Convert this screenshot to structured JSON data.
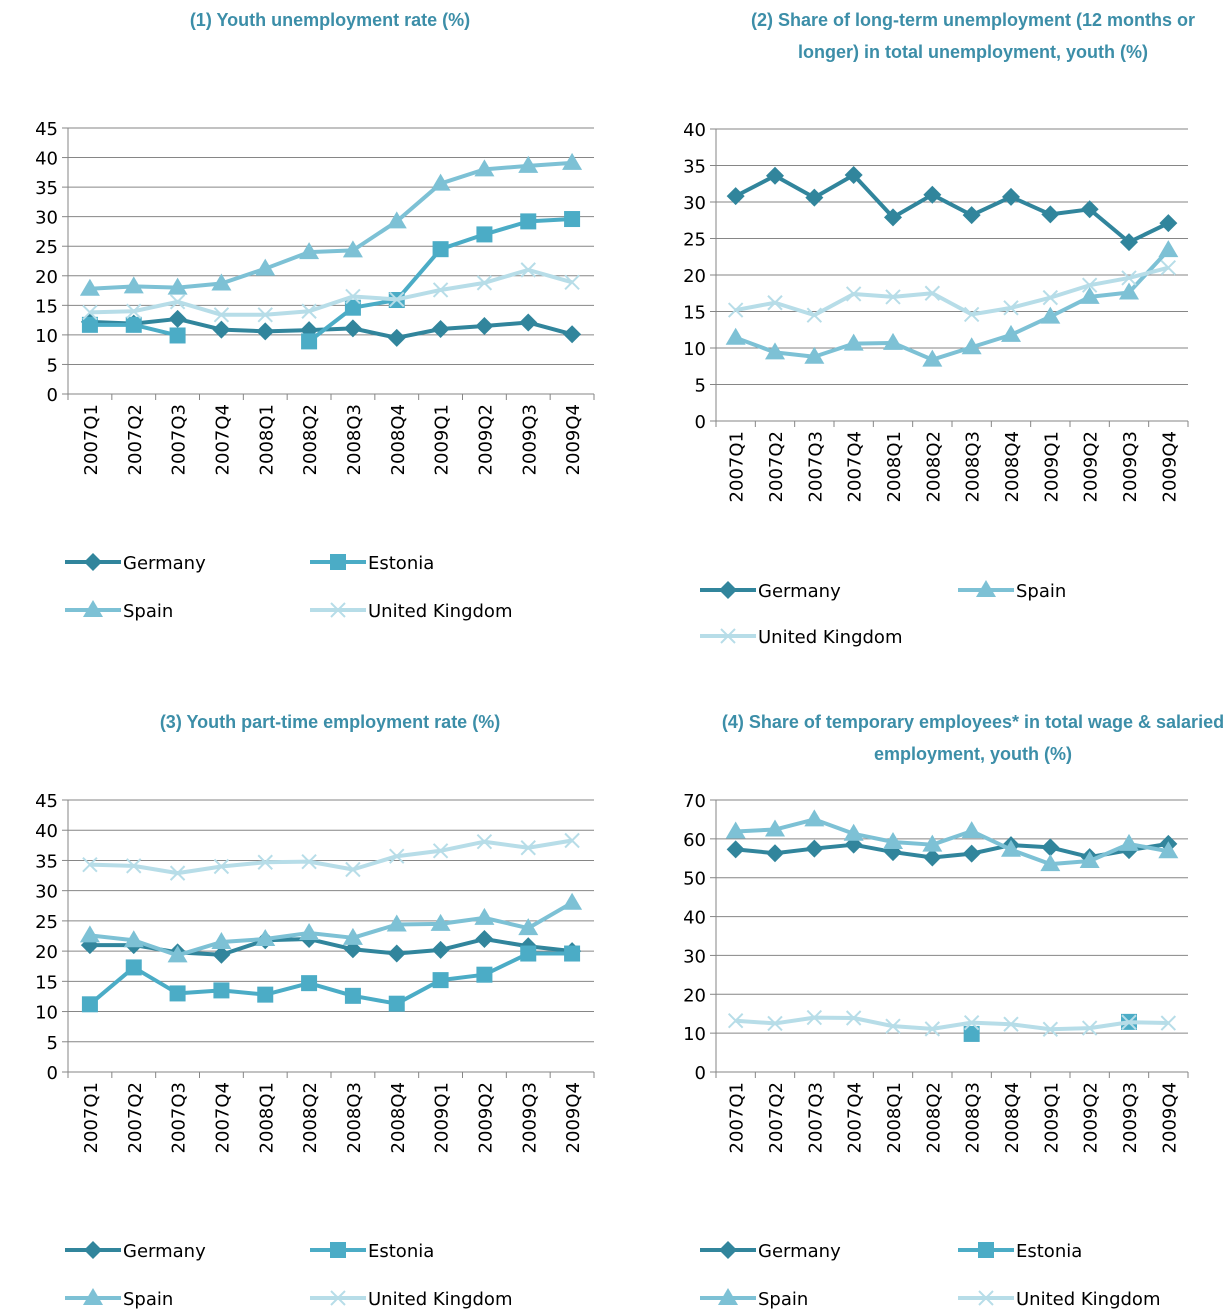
{
  "chart_data": [
    {
      "type": "line",
      "title": "(1)   Youth unemployment rate (%)",
      "categories": [
        "2007Q1",
        "2007Q2",
        "2007Q3",
        "2007Q4",
        "2008Q1",
        "2008Q2",
        "2008Q3",
        "2008Q4",
        "2009Q1",
        "2009Q2",
        "2009Q3",
        "2009Q4"
      ],
      "ylim": [
        0,
        45
      ],
      "yticks": [
        0,
        5,
        10,
        15,
        20,
        25,
        30,
        35,
        40,
        45
      ],
      "grid": true,
      "series": [
        {
          "name": "Germany",
          "color": "#31859c",
          "marker": "diamond",
          "values": [
            12.2,
            11.9,
            12.7,
            10.9,
            10.6,
            10.8,
            11.1,
            9.5,
            11.0,
            11.5,
            12.1,
            10.1
          ]
        },
        {
          "name": "Estonia",
          "color": "#4bacc6",
          "marker": "square",
          "values": [
            11.7,
            11.7,
            9.9,
            null,
            null,
            8.9,
            14.6,
            15.9,
            24.5,
            27.0,
            29.2,
            29.6
          ]
        },
        {
          "name": "Spain",
          "color": "#7dc1d5",
          "marker": "triangle",
          "values": [
            17.8,
            18.2,
            18.0,
            18.7,
            21.2,
            24.0,
            24.3,
            29.2,
            35.6,
            38.0,
            38.6,
            39.1
          ]
        },
        {
          "name": "United Kingdom",
          "color": "#b7dde8",
          "marker": "x",
          "values": [
            13.8,
            14.0,
            15.6,
            13.4,
            13.4,
            14.0,
            16.5,
            16.0,
            17.6,
            18.8,
            21.0,
            18.9
          ]
        }
      ]
    },
    {
      "type": "line",
      "title": "(2)   Share of long-term unemployment (12 months or longer) in total unemployment, youth (%)",
      "categories": [
        "2007Q1",
        "2007Q2",
        "2007Q3",
        "2007Q4",
        "2008Q1",
        "2008Q2",
        "2008Q3",
        "2008Q4",
        "2009Q1",
        "2009Q2",
        "2009Q3",
        "2009Q4"
      ],
      "ylim": [
        0,
        40
      ],
      "yticks": [
        0,
        5,
        10,
        15,
        20,
        25,
        30,
        35,
        40
      ],
      "grid": true,
      "series": [
        {
          "name": "Germany",
          "color": "#31859c",
          "marker": "diamond",
          "values": [
            30.8,
            33.6,
            30.6,
            33.7,
            27.9,
            31.0,
            28.2,
            30.7,
            28.3,
            29.0,
            24.5,
            27.1
          ]
        },
        {
          "name": "Spain",
          "color": "#7dc1d5",
          "marker": "triangle",
          "values": [
            11.4,
            9.4,
            8.8,
            10.6,
            10.7,
            8.4,
            10.1,
            11.8,
            14.3,
            17.0,
            17.6,
            23.4
          ]
        },
        {
          "name": "United Kingdom",
          "color": "#b7dde8",
          "marker": "x",
          "values": [
            15.2,
            16.2,
            14.5,
            17.4,
            17.0,
            17.5,
            14.6,
            15.5,
            16.9,
            18.6,
            19.6,
            21.0
          ]
        }
      ]
    },
    {
      "type": "line",
      "title": "(3)   Youth part-time employment rate (%)",
      "categories": [
        "2007Q1",
        "2007Q2",
        "2007Q3",
        "2007Q4",
        "2008Q1",
        "2008Q2",
        "2008Q3",
        "2008Q4",
        "2009Q1",
        "2009Q2",
        "2009Q3",
        "2009Q4"
      ],
      "ylim": [
        0,
        45
      ],
      "yticks": [
        0,
        5,
        10,
        15,
        20,
        25,
        30,
        35,
        40,
        45
      ],
      "grid": true,
      "series": [
        {
          "name": "Germany",
          "color": "#31859c",
          "marker": "diamond",
          "values": [
            21.0,
            21.0,
            19.8,
            19.4,
            21.8,
            22.0,
            20.3,
            19.6,
            20.2,
            22.0,
            20.8,
            20.0
          ]
        },
        {
          "name": "Estonia",
          "color": "#4bacc6",
          "marker": "square",
          "values": [
            11.2,
            17.3,
            13.0,
            13.5,
            12.8,
            14.7,
            12.6,
            11.3,
            15.2,
            16.1,
            19.6,
            19.6
          ]
        },
        {
          "name": "Spain",
          "color": "#7dc1d5",
          "marker": "triangle",
          "values": [
            22.6,
            21.8,
            19.3,
            21.5,
            22.0,
            23.0,
            22.2,
            24.4,
            24.5,
            25.5,
            23.8,
            28.0
          ]
        },
        {
          "name": "United Kingdom",
          "color": "#b7dde8",
          "marker": "x",
          "values": [
            34.3,
            34.1,
            32.9,
            34.0,
            34.7,
            34.8,
            33.5,
            35.7,
            36.6,
            38.1,
            37.1,
            38.3
          ]
        }
      ]
    },
    {
      "type": "line",
      "title": "(4)   Share of temporary employees* in total wage & salaried employment, youth (%)",
      "categories": [
        "2007Q1",
        "2007Q2",
        "2007Q3",
        "2007Q4",
        "2008Q1",
        "2008Q2",
        "2008Q3",
        "2008Q4",
        "2009Q1",
        "2009Q2",
        "2009Q3",
        "2009Q4"
      ],
      "ylim": [
        0,
        70
      ],
      "yticks": [
        0,
        10,
        20,
        30,
        40,
        50,
        60,
        70
      ],
      "grid": true,
      "series": [
        {
          "name": "Germany",
          "color": "#31859c",
          "marker": "diamond",
          "values": [
            57.3,
            56.3,
            57.5,
            58.5,
            56.6,
            55.2,
            56.2,
            58.4,
            57.8,
            55.3,
            57.1,
            58.7
          ]
        },
        {
          "name": "Estonia",
          "color": "#4bacc6",
          "marker": "square",
          "values": [
            null,
            null,
            null,
            null,
            null,
            null,
            9.8,
            null,
            null,
            null,
            12.9,
            null
          ]
        },
        {
          "name": "Spain",
          "color": "#7dc1d5",
          "marker": "triangle",
          "values": [
            61.9,
            62.4,
            65.0,
            61.3,
            59.2,
            58.5,
            62.0,
            57.2,
            53.5,
            54.3,
            58.7,
            56.8
          ]
        },
        {
          "name": "United Kingdom",
          "color": "#b7dde8",
          "marker": "x",
          "values": [
            13.2,
            12.5,
            14.0,
            13.9,
            11.8,
            11.1,
            12.7,
            12.3,
            11.0,
            11.3,
            12.8,
            12.6
          ]
        }
      ]
    }
  ]
}
